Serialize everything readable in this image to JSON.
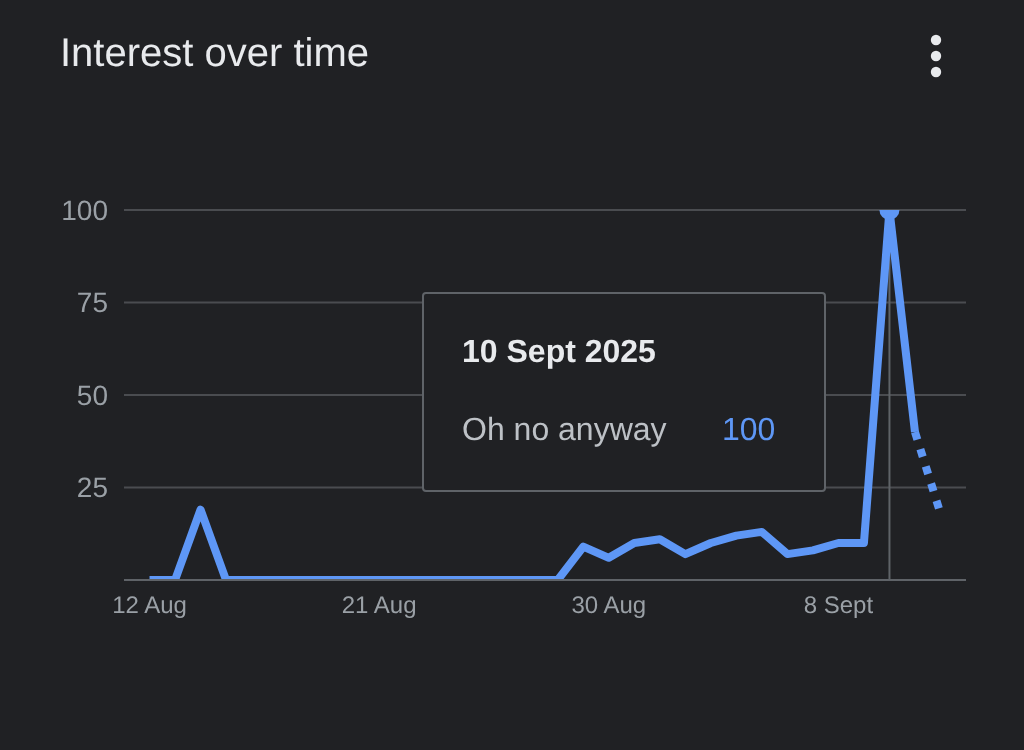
{
  "chart_data": {
    "type": "line",
    "title": "Interest over time",
    "x": [
      "2025-08-12",
      "2025-08-13",
      "2025-08-14",
      "2025-08-15",
      "2025-08-16",
      "2025-08-17",
      "2025-08-18",
      "2025-08-19",
      "2025-08-20",
      "2025-08-21",
      "2025-08-22",
      "2025-08-23",
      "2025-08-24",
      "2025-08-25",
      "2025-08-26",
      "2025-08-27",
      "2025-08-28",
      "2025-08-29",
      "2025-08-30",
      "2025-08-31",
      "2025-09-01",
      "2025-09-02",
      "2025-09-03",
      "2025-09-04",
      "2025-09-05",
      "2025-09-06",
      "2025-09-07",
      "2025-09-08",
      "2025-09-09",
      "2025-09-10",
      "2025-09-11",
      "2025-09-12"
    ],
    "series": [
      {
        "color": "#5e97f6",
        "line_style": "solid",
        "values": [
          0,
          0,
          19,
          0,
          0,
          0,
          0,
          0,
          0,
          0,
          0,
          0,
          0,
          0,
          0,
          0,
          0,
          9,
          6,
          10,
          11,
          7,
          10,
          12,
          13,
          7,
          8,
          10,
          10,
          100,
          40,
          null
        ]
      },
      {
        "color": "#5e97f6",
        "line_style": "dotted",
        "values": [
          null,
          null,
          null,
          null,
          null,
          null,
          null,
          null,
          null,
          null,
          null,
          null,
          null,
          null,
          null,
          null,
          null,
          null,
          null,
          null,
          null,
          null,
          null,
          null,
          null,
          null,
          null,
          null,
          null,
          null,
          40,
          18
        ]
      }
    ],
    "annotations": [
      "10 Sept 2025",
      "Oh no anyway",
      "100"
    ],
    "ref_lines": [
      {
        "axis": "x",
        "value": "2025-09-10",
        "color": "#5f6368"
      }
    ],
    "xlim": [
      "2025-08-11",
      "2025-09-13"
    ],
    "xticks": [
      {
        "value": "2025-08-12",
        "label": "12 Aug"
      },
      {
        "value": "2025-08-21",
        "label": "21 Aug"
      },
      {
        "value": "2025-08-30",
        "label": "30 Aug"
      },
      {
        "value": "2025-09-08",
        "label": "8 Sept"
      }
    ],
    "ylim": [
      0,
      100
    ],
    "yticks": [
      {
        "value": 0,
        "label": null
      },
      25,
      50,
      75,
      100
    ],
    "grid": "y",
    "marker": "none"
  }
}
